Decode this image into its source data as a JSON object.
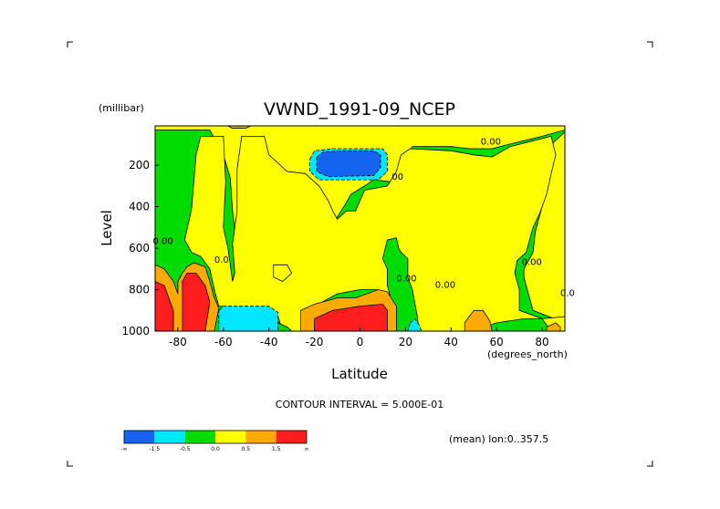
{
  "chart_data": {
    "type": "heatmap",
    "title": "VWND_1991-09_NCEP",
    "xlabel": "Latitude",
    "ylabel": "Level",
    "x_units": "(degrees_north)",
    "y_units": "(millibar)",
    "xlim": [
      -90,
      90
    ],
    "ylim": [
      1000,
      10
    ],
    "x_ticks": [
      -80,
      -60,
      -40,
      -20,
      0,
      20,
      40,
      60,
      80
    ],
    "x_tick_labels": [
      "-80",
      "-60",
      "-40",
      "-20",
      "0",
      "20",
      "40",
      "60",
      "80"
    ],
    "y_ticks": [
      200,
      400,
      600,
      800,
      1000
    ],
    "y_tick_labels": [
      "200",
      "400",
      "600",
      "800",
      "1000"
    ],
    "contour_interval_text": "CONTOUR INTERVAL = 5.000E-01",
    "footnote": "(mean) lon:0..357.5",
    "contour_labels": [
      {
        "text": "0.00",
        "x": 53,
        "y": 100
      },
      {
        "text": "00",
        "x": 14,
        "y": 270
      },
      {
        "text": "0.00",
        "x": -91,
        "y": 580
      },
      {
        "text": "0.0",
        "x": -64,
        "y": 670
      },
      {
        "text": "0.00",
        "x": 16,
        "y": 760
      },
      {
        "text": "0.00",
        "x": 33,
        "y": 790
      },
      {
        "text": "0.00",
        "x": 71,
        "y": 680
      },
      {
        "text": "0.0",
        "x": 88,
        "y": 830
      }
    ],
    "levels": [
      {
        "label": "-∞",
        "color": "#1464f0",
        "range": [
          null,
          -1.5
        ]
      },
      {
        "label": "-1.5",
        "color": "#00e6ff",
        "range": [
          -1.5,
          -0.5
        ]
      },
      {
        "label": "-0.5",
        "color": "#00dc00",
        "range": [
          -0.5,
          0.0
        ]
      },
      {
        "label": "0.0",
        "color": "#ffff00",
        "range": [
          0.0,
          0.5
        ]
      },
      {
        "label": "0.5",
        "color": "#ffaa00",
        "range": [
          0.5,
          1.5
        ]
      },
      {
        "label": "1.5",
        "color": "#ff1e1e",
        "range": [
          1.5,
          null
        ]
      },
      {
        "label": "∞",
        "color": "#ff1e1e",
        "range": [
          null,
          null
        ]
      }
    ],
    "regions": [
      {
        "level": 0,
        "points": [
          [
            -90,
            10
          ],
          [
            90,
            10
          ],
          [
            90,
            1000
          ],
          [
            -90,
            1000
          ]
        ],
        "value_level": 3
      },
      {
        "level": 2,
        "points": [
          [
            -90,
            30
          ],
          [
            -66,
            30
          ],
          [
            -60,
            150
          ],
          [
            -57,
            260
          ],
          [
            -56,
            420
          ],
          [
            -54,
            600
          ],
          [
            -50,
            680
          ],
          [
            -48,
            760
          ],
          [
            -44,
            900
          ],
          [
            -34,
            900
          ],
          [
            -30,
            880
          ],
          [
            -28,
            820
          ],
          [
            -26,
            640
          ],
          [
            -22,
            580
          ],
          [
            -20,
            560
          ],
          [
            -16,
            520
          ],
          [
            -13,
            500
          ],
          [
            -10,
            450
          ],
          [
            -6,
            380
          ],
          [
            -4,
            340
          ],
          [
            2,
            300
          ],
          [
            6,
            270
          ],
          [
            14,
            280
          ],
          [
            17,
            230
          ],
          [
            20,
            160
          ],
          [
            23,
            110
          ],
          [
            40,
            110
          ],
          [
            48,
            120
          ],
          [
            58,
            120
          ],
          [
            65,
            100
          ],
          [
            80,
            60
          ],
          [
            90,
            30
          ],
          [
            90,
            40
          ],
          [
            84,
            100
          ],
          [
            82,
            260
          ],
          [
            80,
            400
          ],
          [
            77,
            520
          ],
          [
            76,
            620
          ],
          [
            72,
            700
          ],
          [
            72,
            740
          ],
          [
            76,
            900
          ],
          [
            90,
            960
          ],
          [
            90,
            1000
          ],
          [
            -90,
            1000
          ]
        ]
      },
      {
        "level": 3,
        "points": [
          [
            -77,
            560
          ],
          [
            -74,
            410
          ],
          [
            -72,
            150
          ],
          [
            -70,
            60
          ],
          [
            -60,
            60
          ],
          [
            -59,
            280
          ],
          [
            -60,
            500
          ],
          [
            -58,
            600
          ],
          [
            -56,
            760
          ],
          [
            -55,
            720
          ],
          [
            -56,
            580
          ],
          [
            -54,
            420
          ],
          [
            -54,
            220
          ],
          [
            -52,
            60
          ],
          [
            -42,
            60
          ],
          [
            -40,
            150
          ],
          [
            -32,
            230
          ],
          [
            -24,
            240
          ],
          [
            -18,
            300
          ],
          [
            -14,
            370
          ],
          [
            -12,
            420
          ],
          [
            -10,
            460
          ],
          [
            -6,
            420
          ],
          [
            -2,
            420
          ],
          [
            2,
            320
          ],
          [
            12,
            300
          ],
          [
            16,
            230
          ],
          [
            18,
            150
          ],
          [
            22,
            120
          ],
          [
            40,
            130
          ],
          [
            50,
            150
          ],
          [
            58,
            160
          ],
          [
            66,
            110
          ],
          [
            84,
            60
          ],
          [
            86,
            150
          ],
          [
            84,
            240
          ],
          [
            82,
            340
          ],
          [
            79,
            430
          ],
          [
            76,
            500
          ],
          [
            74,
            580
          ],
          [
            73,
            620
          ],
          [
            69,
            660
          ],
          [
            68,
            720
          ],
          [
            70,
            800
          ],
          [
            70,
            900
          ],
          [
            80,
            940
          ],
          [
            90,
            930
          ],
          [
            90,
            1000
          ],
          [
            84,
            1000
          ],
          [
            80,
            940
          ],
          [
            72,
            940
          ],
          [
            60,
            960
          ],
          [
            50,
            1000
          ],
          [
            26,
            1000
          ],
          [
            25,
            920
          ],
          [
            23,
            800
          ],
          [
            21,
            740
          ],
          [
            21,
            650
          ],
          [
            18,
            620
          ],
          [
            17,
            600
          ],
          [
            16,
            550
          ],
          [
            12,
            560
          ],
          [
            10,
            650
          ],
          [
            12,
            700
          ],
          [
            12,
            780
          ],
          [
            14,
            860
          ],
          [
            8,
            800
          ],
          [
            0,
            800
          ],
          [
            -10,
            820
          ],
          [
            -20,
            880
          ],
          [
            -22,
            940
          ],
          [
            -24,
            1000
          ],
          [
            -34,
            1000
          ],
          [
            -36,
            930
          ],
          [
            -44,
            890
          ],
          [
            -62,
            880
          ],
          [
            -64,
            800
          ],
          [
            -66,
            700
          ],
          [
            -70,
            640
          ],
          [
            -74,
            620
          ]
        ]
      },
      {
        "level": 3,
        "points": [
          [
            -38,
            680
          ],
          [
            -32,
            680
          ],
          [
            -30,
            720
          ],
          [
            -34,
            760
          ],
          [
            -38,
            740
          ]
        ]
      },
      {
        "level": 2,
        "points": [
          [
            -36,
            960
          ],
          [
            -32,
            980
          ],
          [
            -30,
            1000
          ],
          [
            -40,
            1000
          ]
        ]
      },
      {
        "level": 1,
        "points": [
          [
            -62,
            900
          ],
          [
            -60,
            880
          ],
          [
            -40,
            880
          ],
          [
            -36,
            910
          ],
          [
            -36,
            1000
          ],
          [
            -62,
            1000
          ]
        ]
      },
      {
        "level": 1,
        "points": [
          [
            -22,
            170
          ],
          [
            -20,
            130
          ],
          [
            -12,
            120
          ],
          [
            10,
            120
          ],
          [
            12,
            150
          ],
          [
            12,
            230
          ],
          [
            8,
            270
          ],
          [
            -18,
            270
          ],
          [
            -22,
            230
          ]
        ]
      },
      {
        "level": 0,
        "points": [
          [
            -19,
            160
          ],
          [
            -16,
            135
          ],
          [
            -8,
            130
          ],
          [
            6,
            130
          ],
          [
            9,
            150
          ],
          [
            9,
            210
          ],
          [
            6,
            250
          ],
          [
            -14,
            255
          ],
          [
            -19,
            230
          ]
        ]
      },
      {
        "level": 1,
        "points": [
          [
            22,
            960
          ],
          [
            24,
            940
          ],
          [
            26,
            970
          ],
          [
            27,
            1000
          ],
          [
            21,
            1000
          ]
        ]
      },
      {
        "level": 4,
        "points": [
          [
            -90,
            680
          ],
          [
            -86,
            700
          ],
          [
            -82,
            760
          ],
          [
            -80,
            820
          ],
          [
            -80,
            760
          ],
          [
            -78,
            720
          ],
          [
            -76,
            690
          ],
          [
            -73,
            670
          ],
          [
            -68,
            690
          ],
          [
            -66,
            760
          ],
          [
            -64,
            840
          ],
          [
            -62,
            890
          ],
          [
            -64,
            1000
          ],
          [
            -90,
            1000
          ]
        ]
      },
      {
        "level": 5,
        "points": [
          [
            -90,
            760
          ],
          [
            -86,
            780
          ],
          [
            -84,
            840
          ],
          [
            -82,
            900
          ],
          [
            -82,
            1000
          ],
          [
            -90,
            1000
          ]
        ]
      },
      {
        "level": 5,
        "points": [
          [
            -78,
            760
          ],
          [
            -76,
            720
          ],
          [
            -72,
            720
          ],
          [
            -68,
            780
          ],
          [
            -66,
            860
          ],
          [
            -68,
            1000
          ],
          [
            -78,
            1000
          ]
        ]
      },
      {
        "level": 4,
        "points": [
          [
            -26,
            900
          ],
          [
            -20,
            870
          ],
          [
            -10,
            840
          ],
          [
            -2,
            840
          ],
          [
            8,
            800
          ],
          [
            12,
            810
          ],
          [
            16,
            880
          ],
          [
            16,
            1000
          ],
          [
            -26,
            1000
          ]
        ]
      },
      {
        "level": 5,
        "points": [
          [
            -20,
            940
          ],
          [
            -12,
            900
          ],
          [
            0,
            880
          ],
          [
            10,
            870
          ],
          [
            12,
            900
          ],
          [
            12,
            1000
          ],
          [
            -20,
            1000
          ]
        ]
      },
      {
        "level": 4,
        "points": [
          [
            46,
            960
          ],
          [
            50,
            900
          ],
          [
            54,
            900
          ],
          [
            57,
            950
          ],
          [
            58,
            1000
          ],
          [
            46,
            1000
          ]
        ]
      },
      {
        "level": 4,
        "points": [
          [
            82,
            980
          ],
          [
            86,
            960
          ],
          [
            88,
            980
          ],
          [
            88,
            1000
          ],
          [
            82,
            1000
          ]
        ]
      },
      {
        "level": 4,
        "points": [
          [
            -58,
            10
          ],
          [
            -48,
            10
          ],
          [
            -50,
            20
          ],
          [
            -56,
            22
          ]
        ]
      }
    ]
  },
  "colorbar": {
    "tick_labels": [
      "-∞",
      "-1.5",
      "-0.5",
      "0.0",
      "0.5",
      "1.5",
      "∞"
    ]
  }
}
